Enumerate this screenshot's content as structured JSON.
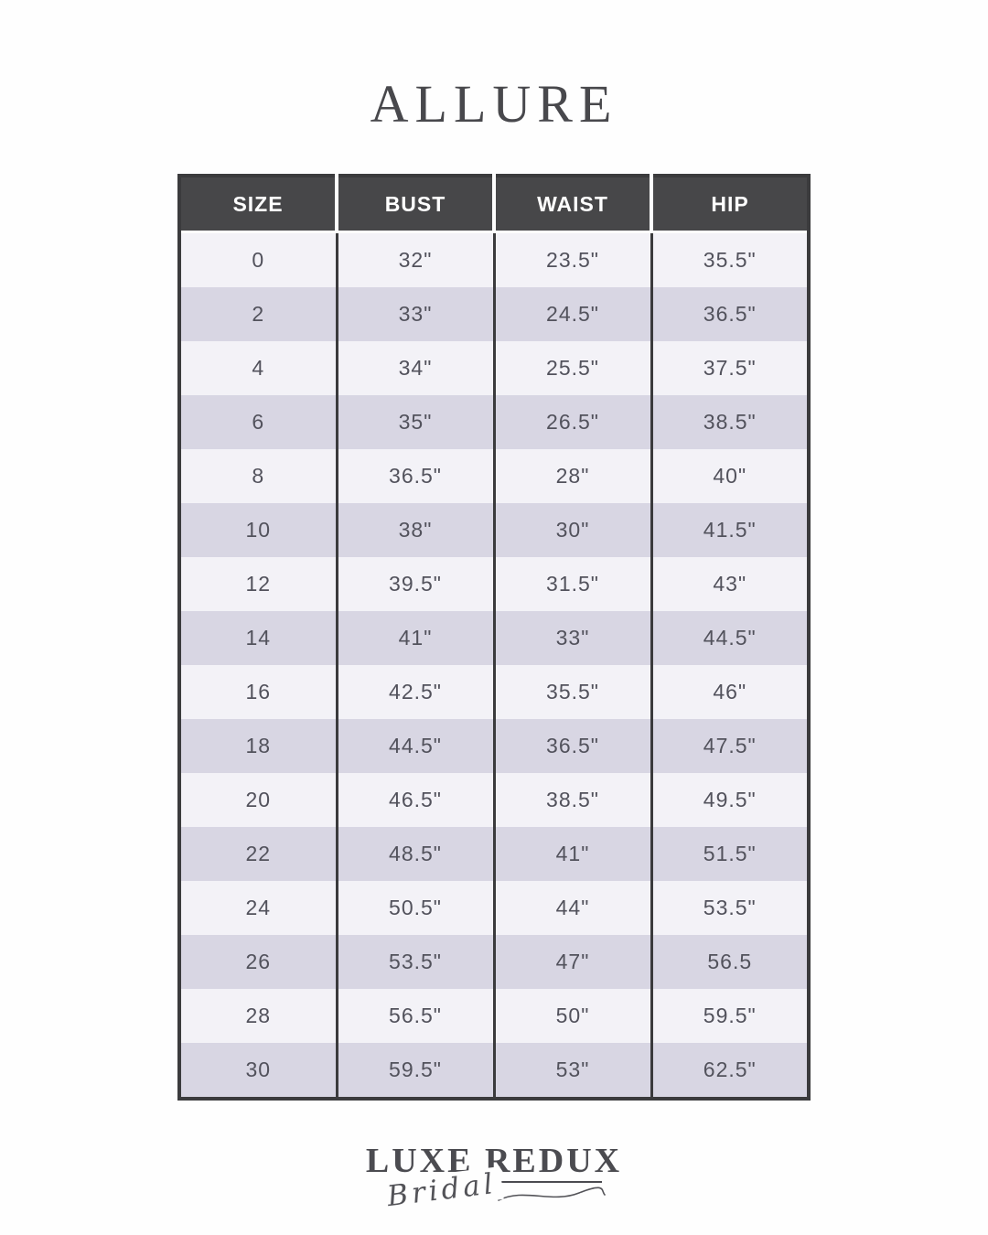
{
  "title": "ALLURE",
  "chart_data": {
    "type": "table",
    "title": "ALLURE",
    "columns": [
      "SIZE",
      "BUST",
      "WAIST",
      "HIP"
    ],
    "rows": [
      [
        "0",
        "32\"",
        "23.5\"",
        "35.5\""
      ],
      [
        "2",
        "33\"",
        "24.5\"",
        "36.5\""
      ],
      [
        "4",
        "34\"",
        "25.5\"",
        "37.5\""
      ],
      [
        "6",
        "35\"",
        "26.5\"",
        "38.5\""
      ],
      [
        "8",
        "36.5\"",
        "28\"",
        "40\""
      ],
      [
        "10",
        "38\"",
        "30\"",
        "41.5\""
      ],
      [
        "12",
        "39.5\"",
        "31.5\"",
        "43\""
      ],
      [
        "14",
        "41\"",
        "33\"",
        "44.5\""
      ],
      [
        "16",
        "42.5\"",
        "35.5\"",
        "46\""
      ],
      [
        "18",
        "44.5\"",
        "36.5\"",
        "47.5\""
      ],
      [
        "20",
        "46.5\"",
        "38.5\"",
        "49.5\""
      ],
      [
        "22",
        "48.5\"",
        "41\"",
        "51.5\""
      ],
      [
        "24",
        "50.5\"",
        "44\"",
        "53.5\""
      ],
      [
        "26",
        "53.5\"",
        "47\"",
        "56.5"
      ],
      [
        "28",
        "56.5\"",
        "50\"",
        "59.5\""
      ],
      [
        "30",
        "59.5\"",
        "53\"",
        "62.5\""
      ]
    ]
  },
  "footer": {
    "brand_line1": "LUXE REDUX",
    "brand_line2": "Bridal"
  },
  "colors": {
    "page_background": "#fefefe",
    "header_bg": "#474749",
    "header_text": "#ffffff",
    "row_light": "#f3f2f7",
    "row_dark": "#d8d6e3",
    "table_border": "#3b3b3d",
    "cell_text": "#52525c",
    "title_text": "#48484c",
    "brand_text": "#4b4b50"
  }
}
